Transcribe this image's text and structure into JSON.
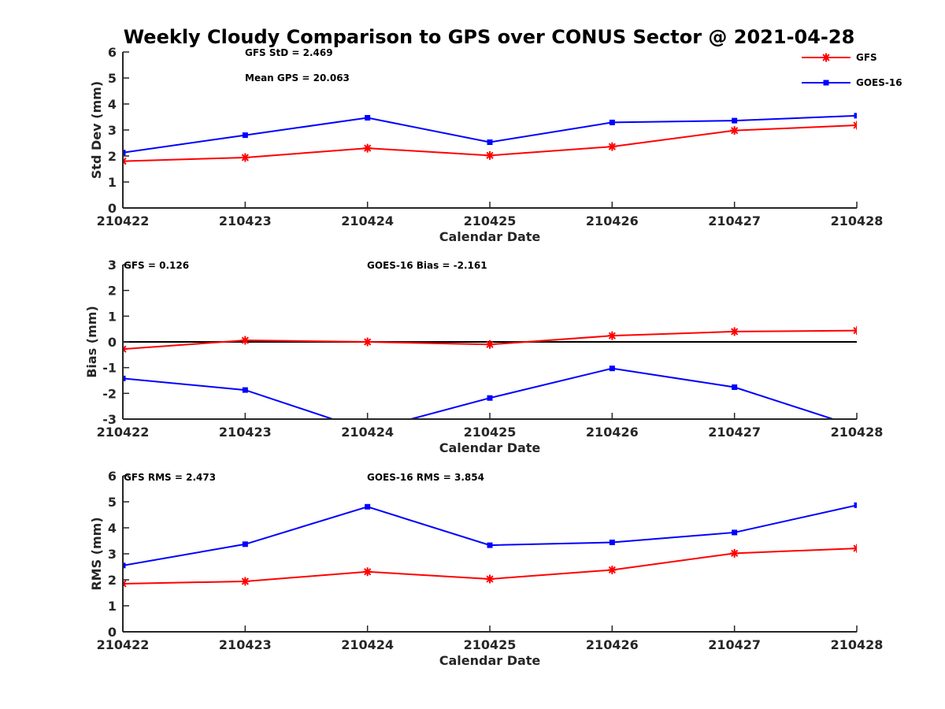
{
  "figure": {
    "title": "Weekly Cloudy Comparison to GPS over CONUS Sector @ 2021-04-28"
  },
  "legend": {
    "placement": "top-right",
    "entries": [
      {
        "label": "GFS",
        "color": "#ff0000",
        "marker": "asterisk"
      },
      {
        "label": "GOES-16",
        "color": "#0000ff",
        "marker": "square"
      }
    ]
  },
  "chart_data": [
    {
      "type": "line",
      "xlabel": "Calendar Date",
      "ylabel": "Std Dev (mm)",
      "categories": [
        "210422",
        "210423",
        "210424",
        "210425",
        "210426",
        "210427",
        "210428"
      ],
      "ylim": [
        0,
        6
      ],
      "yticks": [
        "0",
        "1",
        "2",
        "3",
        "4",
        "5",
        "6"
      ],
      "zero_line": false,
      "annotations": [
        "GFS StD = 2.469",
        "Mean GPS = 20.063"
      ],
      "series": [
        {
          "name": "GFS",
          "color": "#ff0000",
          "marker": "asterisk",
          "values": [
            1.8,
            1.94,
            2.3,
            2.02,
            2.36,
            2.98,
            3.18
          ]
        },
        {
          "name": "GOES-16",
          "color": "#0000ff",
          "marker": "square",
          "values": [
            2.13,
            2.8,
            3.47,
            2.53,
            3.29,
            3.36,
            3.55
          ]
        }
      ]
    },
    {
      "type": "line",
      "xlabel": "Calendar Date",
      "ylabel": "Bias (mm)",
      "categories": [
        "210422",
        "210423",
        "210424",
        "210425",
        "210426",
        "210427",
        "210428"
      ],
      "ylim": [
        -3,
        3
      ],
      "yticks": [
        "-3",
        "-2",
        "-1",
        "0",
        "1",
        "2",
        "3"
      ],
      "zero_line": true,
      "annotations": [
        "GFS = 0.126",
        "GOES-16 Bias  = -2.161"
      ],
      "series": [
        {
          "name": "GFS",
          "color": "#ff0000",
          "marker": "asterisk",
          "values": [
            -0.28,
            0.06,
            0.0,
            -0.1,
            0.24,
            0.4,
            0.44
          ]
        },
        {
          "name": "GOES-16",
          "color": "#0000ff",
          "marker": "square",
          "values": [
            -1.42,
            -1.87,
            -3.45,
            -2.18,
            -1.03,
            -1.76,
            -3.3
          ]
        }
      ]
    },
    {
      "type": "line",
      "xlabel": "Calendar Date",
      "ylabel": "RMS (mm)",
      "categories": [
        "210422",
        "210423",
        "210424",
        "210425",
        "210426",
        "210427",
        "210428"
      ],
      "ylim": [
        0,
        6
      ],
      "yticks": [
        "0",
        "1",
        "2",
        "3",
        "4",
        "5",
        "6"
      ],
      "zero_line": false,
      "annotations": [
        "GFS RMS = 2.473",
        "GOES-16 RMS = 3.854"
      ],
      "series": [
        {
          "name": "GFS",
          "color": "#ff0000",
          "marker": "asterisk",
          "values": [
            1.85,
            1.94,
            2.31,
            2.03,
            2.38,
            3.02,
            3.21
          ]
        },
        {
          "name": "GOES-16",
          "color": "#0000ff",
          "marker": "square",
          "values": [
            2.55,
            3.37,
            4.81,
            3.33,
            3.44,
            3.82,
            4.87
          ]
        }
      ]
    }
  ]
}
